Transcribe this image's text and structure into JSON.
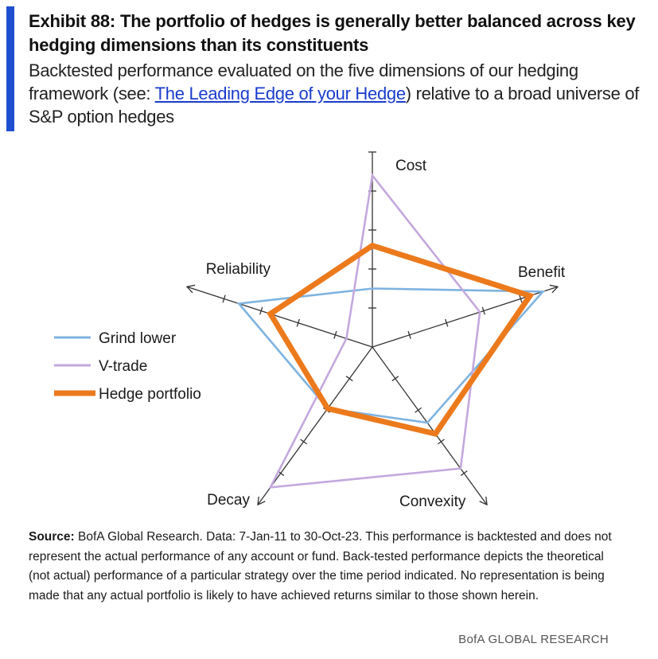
{
  "header": {
    "title": "Exhibit 88: The portfolio of hedges is generally better balanced across key hedging dimensions than its constituents",
    "subtitle_before": "Backtested performance evaluated on the five dimensions of our hedging framework (see: ",
    "subtitle_link": "The Leading Edge of your Hedge",
    "subtitle_after": ") relative to a broad universe of S&P option hedges"
  },
  "chart_data": {
    "type": "radar",
    "axes": [
      "Cost",
      "Benefit",
      "Convexity",
      "Decay",
      "Reliability"
    ],
    "scale": {
      "min": 0,
      "max": 5,
      "ticks": [
        1,
        2,
        3,
        4
      ]
    },
    "series": [
      {
        "name": "Grind lower",
        "color": "#7fb3e0",
        "values": [
          1.5,
          4.6,
          2.4,
          1.95,
          3.6
        ]
      },
      {
        "name": "V-trade",
        "color": "#c4a8de",
        "values": [
          4.4,
          2.9,
          3.85,
          4.45,
          0.7
        ]
      },
      {
        "name": "Hedge portfolio",
        "color": "#ec7a1c",
        "values": [
          2.6,
          4.25,
          2.75,
          1.95,
          2.75
        ]
      }
    ]
  },
  "footer": {
    "source_label": "Source:",
    "source_text": " BofA Global Research. Data: 7-Jan-11 to 30-Oct-23. This performance is backtested and does not represent the actual performance of any account or fund. Back-tested performance depicts the theoretical (not actual) performance of a particular strategy over the time period indicated. No representation is being made that any actual portfolio is likely to have achieved returns similar to those shown herein."
  },
  "brand": "BofA GLOBAL RESEARCH"
}
